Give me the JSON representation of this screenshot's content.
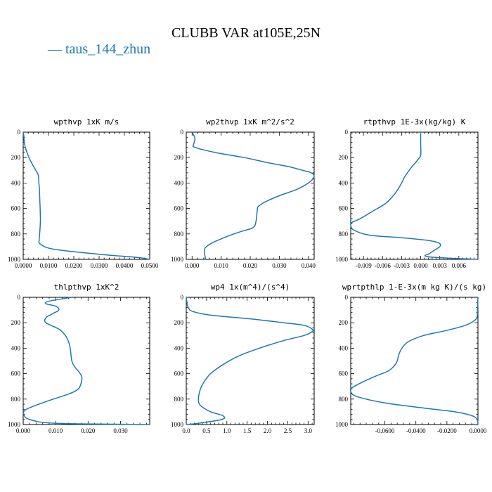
{
  "figure": {
    "title": "CLUBB VAR at105E,25N",
    "legend": [
      {
        "line": "—",
        "label": "taus_144_zhun",
        "color": "#1f77b4"
      }
    ]
  },
  "chart_data": [
    {
      "type": "line",
      "title": "wpthvp  1xK m/s",
      "xlim": [
        0,
        0.05
      ],
      "ylim": [
        1000,
        0
      ],
      "x_ticks": [
        0,
        0.01,
        0.02,
        0.03,
        0.04,
        0.05
      ],
      "x_tick_labels": [
        "0.0000",
        "0.0100",
        "0.0200",
        "0.0300",
        "0.0400",
        "0.0500"
      ],
      "y_ticks": [
        0,
        200,
        400,
        600,
        800,
        1000
      ],
      "y_tick_labels": [
        "0",
        "200",
        "400",
        "600",
        "800",
        "1000"
      ],
      "series": [
        {
          "color": "#1f77b4",
          "x": [
            0.0001,
            0.0006,
            0.0015,
            0.003,
            0.005,
            0.006,
            0.0062,
            0.0064,
            0.0065,
            0.0066,
            0.0067,
            0.0068,
            0.0065,
            0.0063,
            0.0068,
            0.012,
            0.03,
            0.045,
            0.05
          ],
          "y": [
            0,
            100,
            160,
            230,
            300,
            340,
            400,
            450,
            500,
            550,
            600,
            700,
            800,
            850,
            880,
            920,
            960,
            985,
            1000
          ]
        }
      ]
    },
    {
      "type": "line",
      "title": "wp2thvp  1xK m^2/s^2",
      "xlim": [
        -0.002,
        0.042
      ],
      "ylim": [
        1000,
        0
      ],
      "x_ticks": [
        0,
        0.01,
        0.02,
        0.03,
        0.04
      ],
      "x_tick_labels": [
        "0.000",
        "0.010",
        "0.020",
        "0.030",
        "0.040"
      ],
      "y_ticks": [
        0,
        200,
        400,
        600,
        800,
        1000
      ],
      "y_tick_labels": [
        "0",
        "200",
        "400",
        "600",
        "800",
        "1000"
      ],
      "series": [
        {
          "color": "#1f77b4",
          "x": [
            0.0,
            0.001,
            0.0005,
            0.001,
            0.008,
            0.018,
            0.026,
            0.033,
            0.038,
            0.041,
            0.042,
            0.04,
            0.036,
            0.03,
            0.025,
            0.023,
            0.0225,
            0.022,
            0.021,
            0.017,
            0.012,
            0.007,
            0.0045,
            0.0043,
            0.0045,
            0.0047
          ],
          "y": [
            0,
            50,
            100,
            120,
            160,
            200,
            240,
            270,
            300,
            320,
            350,
            400,
            450,
            500,
            550,
            580,
            600,
            700,
            750,
            780,
            820,
            870,
            910,
            950,
            980,
            1000
          ]
        }
      ]
    },
    {
      "type": "line",
      "title": "rtpthvp  1E-3x(kg/kg) K",
      "xlim": [
        -0.011,
        0.009
      ],
      "ylim": [
        1000,
        0
      ],
      "x_ticks": [
        -0.009,
        -0.006,
        -0.003,
        0.0,
        0.003,
        0.006
      ],
      "x_tick_labels": [
        "-0.009",
        "-0.006",
        "-0.003",
        "0.000",
        "0.003",
        "0.006"
      ],
      "y_ticks": [
        0,
        200,
        400,
        600,
        800,
        1000
      ],
      "y_tick_labels": [
        "0",
        "200",
        "400",
        "600",
        "800",
        "1000"
      ],
      "series": [
        {
          "color": "#1f77b4",
          "x": [
            0.0,
            0.0,
            0.0,
            -0.0005,
            -0.0015,
            -0.0025,
            -0.003,
            -0.004,
            -0.0055,
            -0.0075,
            -0.0095,
            -0.0108,
            -0.011,
            -0.0105,
            -0.008,
            -0.003,
            0.001,
            0.0028,
            0.003,
            0.0015,
            0.0012,
            0.009
          ],
          "y": [
            0,
            100,
            180,
            220,
            280,
            350,
            400,
            480,
            560,
            620,
            680,
            710,
            730,
            770,
            810,
            830,
            850,
            870,
            900,
            950,
            980,
            1000
          ]
        }
      ]
    },
    {
      "type": "line",
      "title": "thlpthvp  1xK^2",
      "xlim": [
        0,
        0.039
      ],
      "ylim": [
        1000,
        0
      ],
      "x_ticks": [
        0,
        0.01,
        0.02,
        0.03
      ],
      "x_tick_labels": [
        "0.000",
        "0.010",
        "0.020",
        "0.030"
      ],
      "y_ticks": [
        0,
        200,
        400,
        600,
        800,
        1000
      ],
      "y_tick_labels": [
        "0",
        "200",
        "400",
        "600",
        "800",
        "1000"
      ],
      "series": [
        {
          "color": "#1f77b4",
          "x": [
            0.015,
            0.008,
            0.007,
            0.01,
            0.011,
            0.009,
            0.007,
            0.007,
            0.011,
            0.013,
            0.014,
            0.0145,
            0.015,
            0.016,
            0.017,
            0.018,
            0.018,
            0.017,
            0.014,
            0.007,
            0.001,
            0.0002,
            0.002,
            0.01,
            0.039
          ],
          "y": [
            0,
            30,
            50,
            70,
            100,
            130,
            160,
            200,
            250,
            300,
            350,
            400,
            500,
            550,
            580,
            620,
            660,
            720,
            760,
            820,
            880,
            920,
            960,
            990,
            1000
          ]
        }
      ]
    },
    {
      "type": "line",
      "title": "wp4  1x(m^4)/(s^4)",
      "xlim": [
        0,
        3.15
      ],
      "ylim": [
        1000,
        0
      ],
      "x_ticks": [
        0,
        0.5,
        1.0,
        1.5,
        2.0,
        2.5,
        3.0
      ],
      "x_tick_labels": [
        "0.0",
        "0.5",
        "1.0",
        "1.5",
        "2.0",
        "2.5",
        "3.0"
      ],
      "y_ticks": [
        0,
        200,
        400,
        600,
        800,
        1000
      ],
      "y_tick_labels": [
        "0",
        "200",
        "400",
        "600",
        "800",
        "1000"
      ],
      "series": [
        {
          "color": "#1f77b4",
          "x": [
            0.0,
            0.02,
            0.05,
            0.15,
            0.6,
            1.6,
            2.4,
            2.9,
            3.1,
            3.1,
            2.9,
            2.4,
            1.8,
            1.3,
            0.9,
            0.6,
            0.45,
            0.35,
            0.3,
            0.35,
            0.6,
            0.9,
            0.88,
            0.3,
            0.0
          ],
          "y": [
            0,
            50,
            80,
            110,
            140,
            170,
            200,
            220,
            250,
            270,
            300,
            340,
            400,
            460,
            530,
            600,
            660,
            720,
            800,
            850,
            900,
            930,
            960,
            990,
            1000
          ]
        }
      ]
    },
    {
      "type": "line",
      "title": "wprtpthlp  1-E-3x(m kg K)/(s kg)",
      "xlim": [
        -0.082,
        0.0
      ],
      "ylim": [
        1000,
        0
      ],
      "x_ticks": [
        -0.06,
        -0.04,
        -0.02,
        0.0
      ],
      "x_tick_labels": [
        "-0.0600",
        "-0.0400",
        "-0.0200",
        "0.0000"
      ],
      "y_ticks": [
        0,
        200,
        400,
        600,
        800,
        1000
      ],
      "y_tick_labels": [
        "0",
        "200",
        "400",
        "600",
        "800",
        "1000"
      ],
      "series": [
        {
          "color": "#1f77b4",
          "x": [
            0.0,
            -0.0003,
            -0.0005,
            -0.002,
            -0.008,
            -0.02,
            -0.035,
            -0.045,
            -0.049,
            -0.051,
            -0.052,
            -0.054,
            -0.058,
            -0.066,
            -0.075,
            -0.081,
            -0.082,
            -0.078,
            -0.06,
            -0.035,
            -0.015,
            -0.004,
            -0.0005,
            0.0
          ],
          "y": [
            0,
            100,
            150,
            180,
            220,
            260,
            300,
            350,
            400,
            450,
            500,
            540,
            580,
            620,
            670,
            710,
            740,
            780,
            830,
            870,
            900,
            930,
            960,
            1000
          ]
        }
      ]
    }
  ]
}
